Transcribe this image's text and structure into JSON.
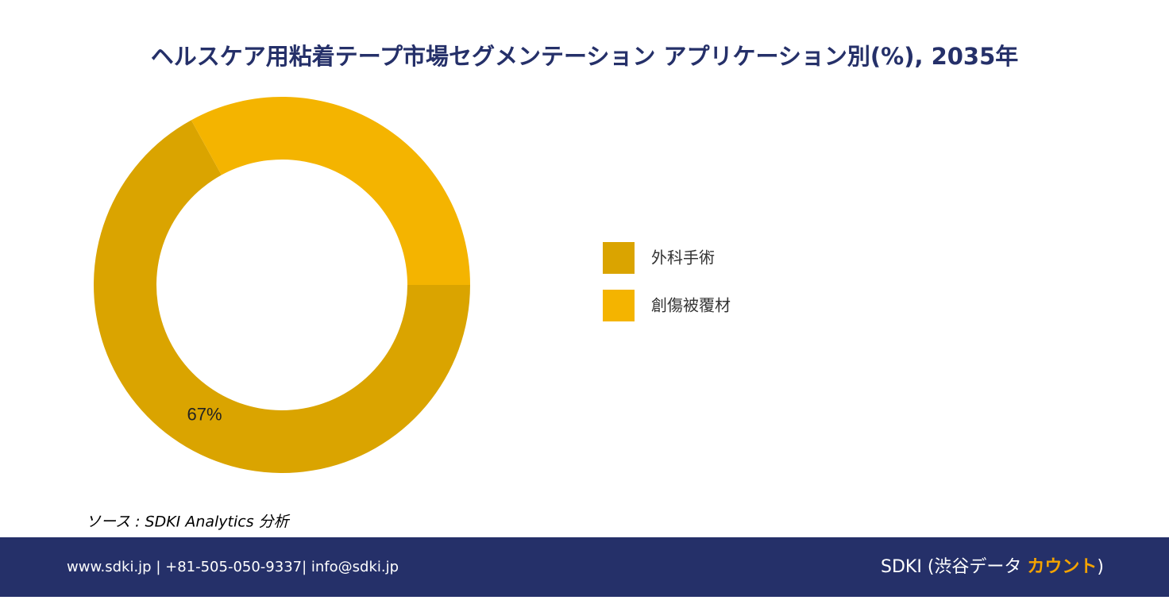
{
  "chart_data": {
    "type": "donut",
    "title": "ヘルスケア用粘着テープ市場セグメンテーション アプリケーション別(%), 2035年",
    "categories": [
      "外科手術",
      "創傷被覆材"
    ],
    "values": [
      67,
      33
    ],
    "value_labels": [
      "67%",
      null
    ],
    "colors": [
      "#DAA400",
      "#F4B400"
    ]
  },
  "source": "ソース : SDKI Analytics 分析",
  "footer": {
    "contact": "www.sdki.jp | +81-505-050-9337| info@sdki.jp",
    "brand": [
      "SDKI (渋谷データ ",
      "カウント",
      ")"
    ]
  }
}
